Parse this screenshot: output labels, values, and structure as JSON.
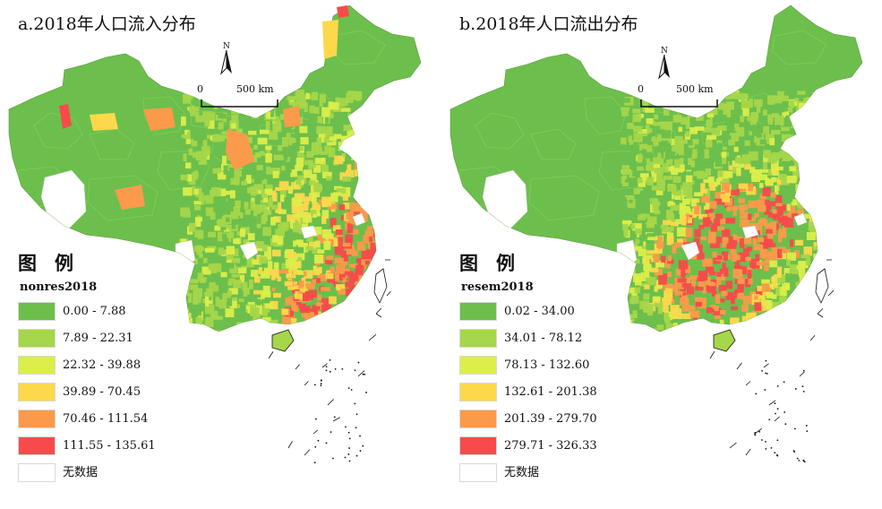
{
  "panels": [
    {
      "id": "a",
      "title": "a.2018年人口流入分布",
      "north_label": "N",
      "scale_start": "0",
      "scale_end": "500 km",
      "legend_heading": "图例",
      "field": "nonres2018",
      "legend": [
        {
          "label": "0.00 - 7.88",
          "color": "#6cbf4c"
        },
        {
          "label": "7.89 - 22.31",
          "color": "#a6d64a"
        },
        {
          "label": "22.32 - 39.88",
          "color": "#dcee4a"
        },
        {
          "label": "39.89 - 70.45",
          "color": "#fdd84b"
        },
        {
          "label": "70.46 - 111.54",
          "color": "#fb9a4a"
        },
        {
          "label": "111.55 - 135.61",
          "color": "#f84a4a"
        },
        {
          "label": "无数据",
          "color": "#ffffff"
        }
      ]
    },
    {
      "id": "b",
      "title": "b.2018年人口流出分布",
      "north_label": "N",
      "scale_start": "0",
      "scale_end": "500 km",
      "legend_heading": "图例",
      "field": "resem2018",
      "legend": [
        {
          "label": "0.02 - 34.00",
          "color": "#6cbf4c"
        },
        {
          "label": "34.01 - 78.12",
          "color": "#a6d64a"
        },
        {
          "label": "78.13 - 132.60",
          "color": "#dcee4a"
        },
        {
          "label": "132.61 - 201.38",
          "color": "#fdd84b"
        },
        {
          "label": "201.39 - 279.70",
          "color": "#fb9a4a"
        },
        {
          "label": "279.71 - 326.33",
          "color": "#f84a4a"
        },
        {
          "label": "无数据",
          "color": "#ffffff"
        }
      ]
    }
  ]
}
